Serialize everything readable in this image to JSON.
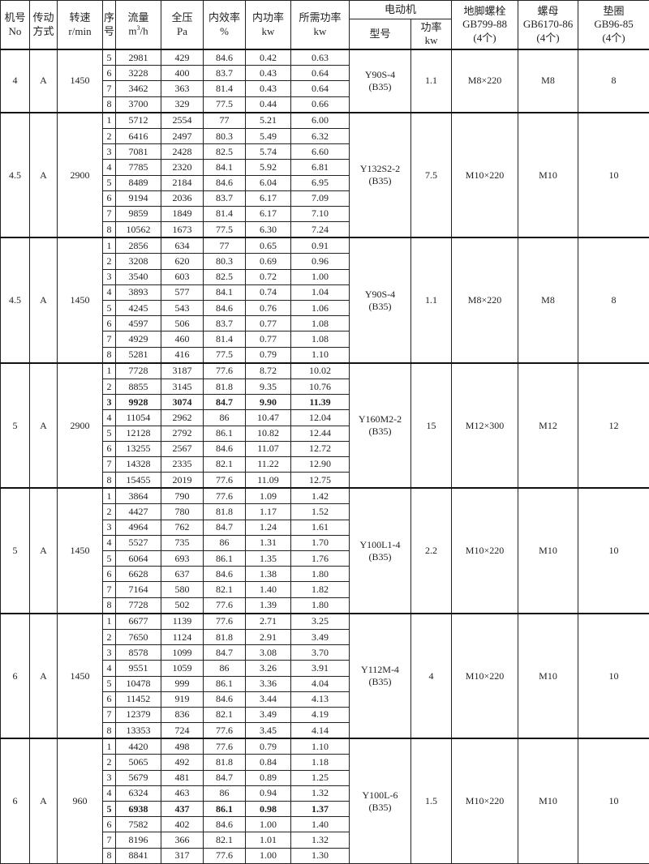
{
  "header": {
    "no": "机号",
    "no_sub": "No",
    "drive": "传动",
    "drive_sub": "方式",
    "speed": "转速",
    "speed_sub": "r/min",
    "seq": "序",
    "seq_sub": "号",
    "flow": "流量",
    "flow_unit_pre": "m",
    "flow_unit_sup": "3",
    "flow_unit_post": "/h",
    "pressure": "全压",
    "pressure_sub": "Pa",
    "eff": "内效率",
    "eff_sub": "%",
    "inpow": "内功率",
    "inpow_sub": "kw",
    "reqpow": "所需功率",
    "reqpow_sub": "kw",
    "motor": "电动机",
    "motor_model": "型号",
    "motor_power": "功率",
    "motor_power_sub": "kw",
    "bolt": "地脚螺栓",
    "bolt_std": "GB799-88",
    "bolt_qty": "(4个)",
    "nut": "螺母",
    "nut_std": "GB6170-86",
    "nut_qty": "(4个)",
    "washer": "垫圈",
    "washer_std": "GB96-85",
    "washer_qty": "(4个)"
  },
  "groups": [
    {
      "no": "4",
      "drive": "A",
      "speed": "1450",
      "model": "Y90S-4",
      "model_sub": "(B35)",
      "power": "1.1",
      "bolt": "M8×220",
      "nut": "M8",
      "washer": "8",
      "rows": [
        [
          "5",
          "2981",
          "429",
          "84.6",
          "0.42",
          "0.63"
        ],
        [
          "6",
          "3228",
          "400",
          "83.7",
          "0.43",
          "0.64"
        ],
        [
          "7",
          "3462",
          "363",
          "81.4",
          "0.43",
          "0.64"
        ],
        [
          "8",
          "3700",
          "329",
          "77.5",
          "0.44",
          "0.66"
        ]
      ]
    },
    {
      "no": "4.5",
      "drive": "A",
      "speed": "2900",
      "model": "Y132S2-2",
      "model_sub": "(B35)",
      "power": "7.5",
      "bolt": "M10×220",
      "nut": "M10",
      "washer": "10",
      "rows": [
        [
          "1",
          "5712",
          "2554",
          "77",
          "5.21",
          "6.00"
        ],
        [
          "2",
          "6416",
          "2497",
          "80.3",
          "5.49",
          "6.32"
        ],
        [
          "3",
          "7081",
          "2428",
          "82.5",
          "5.74",
          "6.60"
        ],
        [
          "4",
          "7785",
          "2320",
          "84.1",
          "5.92",
          "6.81"
        ],
        [
          "5",
          "8489",
          "2184",
          "84.6",
          "6.04",
          "6.95"
        ],
        [
          "6",
          "9194",
          "2036",
          "83.7",
          "6.17",
          "7.09"
        ],
        [
          "7",
          "9859",
          "1849",
          "81.4",
          "6.17",
          "7.10"
        ],
        [
          "8",
          "10562",
          "1673",
          "77.5",
          "6.30",
          "7.24"
        ]
      ]
    },
    {
      "no": "4.5",
      "drive": "A",
      "speed": "1450",
      "model": "Y90S-4",
      "model_sub": "(B35)",
      "power": "1.1",
      "bolt": "M8×220",
      "nut": "M8",
      "washer": "8",
      "rows": [
        [
          "1",
          "2856",
          "634",
          "77",
          "0.65",
          "0.91"
        ],
        [
          "2",
          "3208",
          "620",
          "80.3",
          "0.69",
          "0.96"
        ],
        [
          "3",
          "3540",
          "603",
          "82.5",
          "0.72",
          "1.00"
        ],
        [
          "4",
          "3893",
          "577",
          "84.1",
          "0.74",
          "1.04"
        ],
        [
          "5",
          "4245",
          "543",
          "84.6",
          "0.76",
          "1.06"
        ],
        [
          "6",
          "4597",
          "506",
          "83.7",
          "0.77",
          "1.08"
        ],
        [
          "7",
          "4929",
          "460",
          "81.4",
          "0.77",
          "1.08"
        ],
        [
          "8",
          "5281",
          "416",
          "77.5",
          "0.79",
          "1.10"
        ]
      ]
    },
    {
      "no": "5",
      "drive": "A",
      "speed": "2900",
      "model": "Y160M2-2",
      "model_sub": "(B35)",
      "power": "15",
      "bolt": "M12×300",
      "nut": "M12",
      "washer": "12",
      "bold_row": 2,
      "rows": [
        [
          "1",
          "7728",
          "3187",
          "77.6",
          "8.72",
          "10.02"
        ],
        [
          "2",
          "8855",
          "3145",
          "81.8",
          "9.35",
          "10.76"
        ],
        [
          "3",
          "9928",
          "3074",
          "84.7",
          "9.90",
          "11.39"
        ],
        [
          "4",
          "11054",
          "2962",
          "86",
          "10.47",
          "12.04"
        ],
        [
          "5",
          "12128",
          "2792",
          "86.1",
          "10.82",
          "12.44"
        ],
        [
          "6",
          "13255",
          "2567",
          "84.6",
          "11.07",
          "12.72"
        ],
        [
          "7",
          "14328",
          "2335",
          "82.1",
          "11.22",
          "12.90"
        ],
        [
          "8",
          "15455",
          "2019",
          "77.6",
          "11.09",
          "12.75"
        ]
      ]
    },
    {
      "no": "5",
      "drive": "A",
      "speed": "1450",
      "model": "Y100L1-4",
      "model_sub": "(B35)",
      "power": "2.2",
      "bolt": "M10×220",
      "nut": "M10",
      "washer": "10",
      "rows": [
        [
          "1",
          "3864",
          "790",
          "77.6",
          "1.09",
          "1.42"
        ],
        [
          "2",
          "4427",
          "780",
          "81.8",
          "1.17",
          "1.52"
        ],
        [
          "3",
          "4964",
          "762",
          "84.7",
          "1.24",
          "1.61"
        ],
        [
          "4",
          "5527",
          "735",
          "86",
          "1.31",
          "1.70"
        ],
        [
          "5",
          "6064",
          "693",
          "86.1",
          "1.35",
          "1.76"
        ],
        [
          "6",
          "6628",
          "637",
          "84.6",
          "1.38",
          "1.80"
        ],
        [
          "7",
          "7164",
          "580",
          "82.1",
          "1.40",
          "1.82"
        ],
        [
          "8",
          "7728",
          "502",
          "77.6",
          "1.39",
          "1.80"
        ]
      ]
    },
    {
      "no": "6",
      "drive": "A",
      "speed": "1450",
      "model": "Y112M-4",
      "model_sub": "(B35)",
      "power": "4",
      "bolt": "M10×220",
      "nut": "M10",
      "washer": "10",
      "rows": [
        [
          "1",
          "6677",
          "1139",
          "77.6",
          "2.71",
          "3.25"
        ],
        [
          "2",
          "7650",
          "1124",
          "81.8",
          "2.91",
          "3.49"
        ],
        [
          "3",
          "8578",
          "1099",
          "84.7",
          "3.08",
          "3.70"
        ],
        [
          "4",
          "9551",
          "1059",
          "86",
          "3.26",
          "3.91"
        ],
        [
          "5",
          "10478",
          "999",
          "86.1",
          "3.36",
          "4.04"
        ],
        [
          "6",
          "11452",
          "919",
          "84.6",
          "3.44",
          "4.13"
        ],
        [
          "7",
          "12379",
          "836",
          "82.1",
          "3.49",
          "4.19"
        ],
        [
          "8",
          "13353",
          "724",
          "77.6",
          "3.45",
          "4.14"
        ]
      ]
    },
    {
      "no": "6",
      "drive": "A",
      "speed": "960",
      "model": "Y100L-6",
      "model_sub": "(B35)",
      "power": "1.5",
      "bolt": "M10×220",
      "nut": "M10",
      "washer": "10",
      "bold_row": 4,
      "rows": [
        [
          "1",
          "4420",
          "498",
          "77.6",
          "0.79",
          "1.10"
        ],
        [
          "2",
          "5065",
          "492",
          "81.8",
          "0.84",
          "1.18"
        ],
        [
          "3",
          "5679",
          "481",
          "84.7",
          "0.89",
          "1.25"
        ],
        [
          "4",
          "6324",
          "463",
          "86",
          "0.94",
          "1.32"
        ],
        [
          "5",
          "6938",
          "437",
          "86.1",
          "0.98",
          "1.37"
        ],
        [
          "6",
          "7582",
          "402",
          "84.6",
          "1.00",
          "1.40"
        ],
        [
          "7",
          "8196",
          "366",
          "82.1",
          "1.01",
          "1.32"
        ],
        [
          "8",
          "8841",
          "317",
          "77.6",
          "1.00",
          "1.30"
        ]
      ]
    }
  ]
}
